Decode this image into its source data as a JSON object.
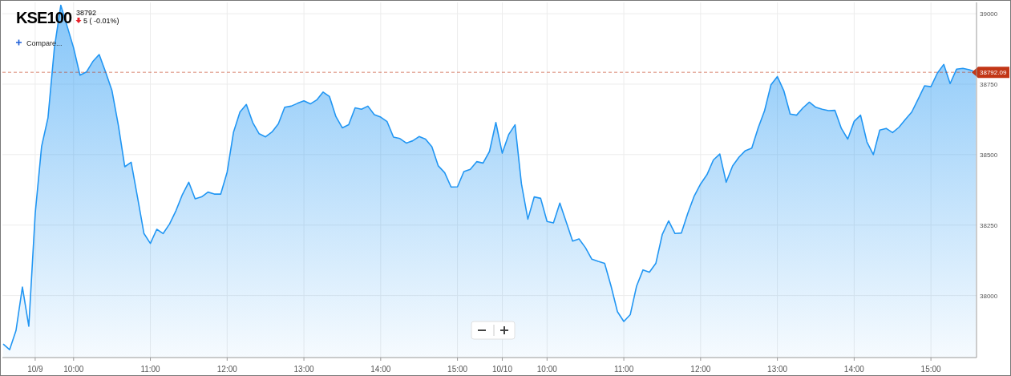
{
  "chart_data": {
    "type": "area",
    "title": "KSE100",
    "annotations": [
      "38792",
      "5 ( -0.01%)",
      "Compare..."
    ],
    "categories": [
      null,
      null,
      null,
      null,
      null,
      "10/9",
      null,
      null,
      null,
      null,
      null,
      "10:00",
      null,
      null,
      null,
      null,
      null,
      null,
      null,
      null,
      null,
      null,
      null,
      "11:00",
      null,
      null,
      null,
      null,
      null,
      null,
      null,
      null,
      null,
      null,
      null,
      "12:00",
      null,
      null,
      null,
      null,
      null,
      null,
      null,
      null,
      null,
      null,
      null,
      "13:00",
      null,
      null,
      null,
      null,
      null,
      null,
      null,
      null,
      null,
      null,
      null,
      "14:00",
      null,
      null,
      null,
      null,
      null,
      null,
      null,
      null,
      null,
      null,
      null,
      "15:00",
      null,
      null,
      null,
      null,
      null,
      null,
      "10/10",
      null,
      null,
      null,
      null,
      null,
      null,
      "10:00",
      null,
      null,
      null,
      null,
      null,
      null,
      null,
      null,
      null,
      null,
      null,
      "11:00",
      null,
      null,
      null,
      null,
      null,
      null,
      null,
      null,
      null,
      null,
      null,
      "12:00",
      null,
      null,
      null,
      null,
      null,
      null,
      null,
      null,
      null,
      null,
      null,
      "13:00",
      null,
      null,
      null,
      null,
      null,
      null,
      null,
      null,
      null,
      null,
      null,
      "14:00",
      null,
      null,
      null,
      null,
      null,
      null,
      null,
      null,
      null,
      null,
      null,
      "15:00",
      null,
      null,
      null,
      null,
      null,
      null,
      null
    ],
    "series": [
      {
        "color": "#2196f3",
        "values": [
          37828,
          37808,
          37876,
          38030,
          37891,
          38291,
          38529,
          38631,
          38879,
          39030,
          38955,
          38879,
          38782,
          38793,
          38830,
          38855,
          38793,
          38727,
          38604,
          38457,
          38473,
          38348,
          38220,
          38185,
          38235,
          38220,
          38254,
          38301,
          38358,
          38402,
          38343,
          38350,
          38367,
          38360,
          38360,
          38438,
          38580,
          38651,
          38678,
          38614,
          38574,
          38563,
          38580,
          38609,
          38668,
          38672,
          38682,
          38691,
          38680,
          38694,
          38722,
          38706,
          38635,
          38595,
          38606,
          38666,
          38661,
          38672,
          38642,
          38633,
          38617,
          38562,
          38557,
          38541,
          38549,
          38564,
          38555,
          38528,
          38460,
          38436,
          38385,
          38386,
          38440,
          38448,
          38475,
          38470,
          38511,
          38614,
          38505,
          38571,
          38606,
          38396,
          38271,
          38350,
          38345,
          38263,
          38258,
          38328,
          38261,
          38193,
          38201,
          38170,
          38129,
          38121,
          38114,
          38034,
          37943,
          37908,
          37932,
          38034,
          38091,
          38083,
          38114,
          38216,
          38265,
          38220,
          38222,
          38292,
          38353,
          38396,
          38429,
          38481,
          38502,
          38402,
          38460,
          38491,
          38514,
          38523,
          38595,
          38656,
          38748,
          38777,
          38727,
          38644,
          38640,
          38666,
          38686,
          38668,
          38661,
          38656,
          38657,
          38593,
          38555,
          38618,
          38640,
          38545,
          38500,
          38587,
          38593,
          38578,
          38597,
          38625,
          38651,
          38697,
          38744,
          38741,
          38789,
          38820,
          38752,
          38803,
          38806,
          38801,
          38793
        ]
      }
    ],
    "ylim": [
      37780,
      39040
    ],
    "yticks": [
      38000,
      38250,
      38500,
      38750,
      39000
    ],
    "grid": true,
    "ref_lines": [
      {
        "axis": "y",
        "value": 38792.09,
        "label": "38792.09",
        "color": "#c23616",
        "line_style": "dashed"
      }
    ]
  }
}
